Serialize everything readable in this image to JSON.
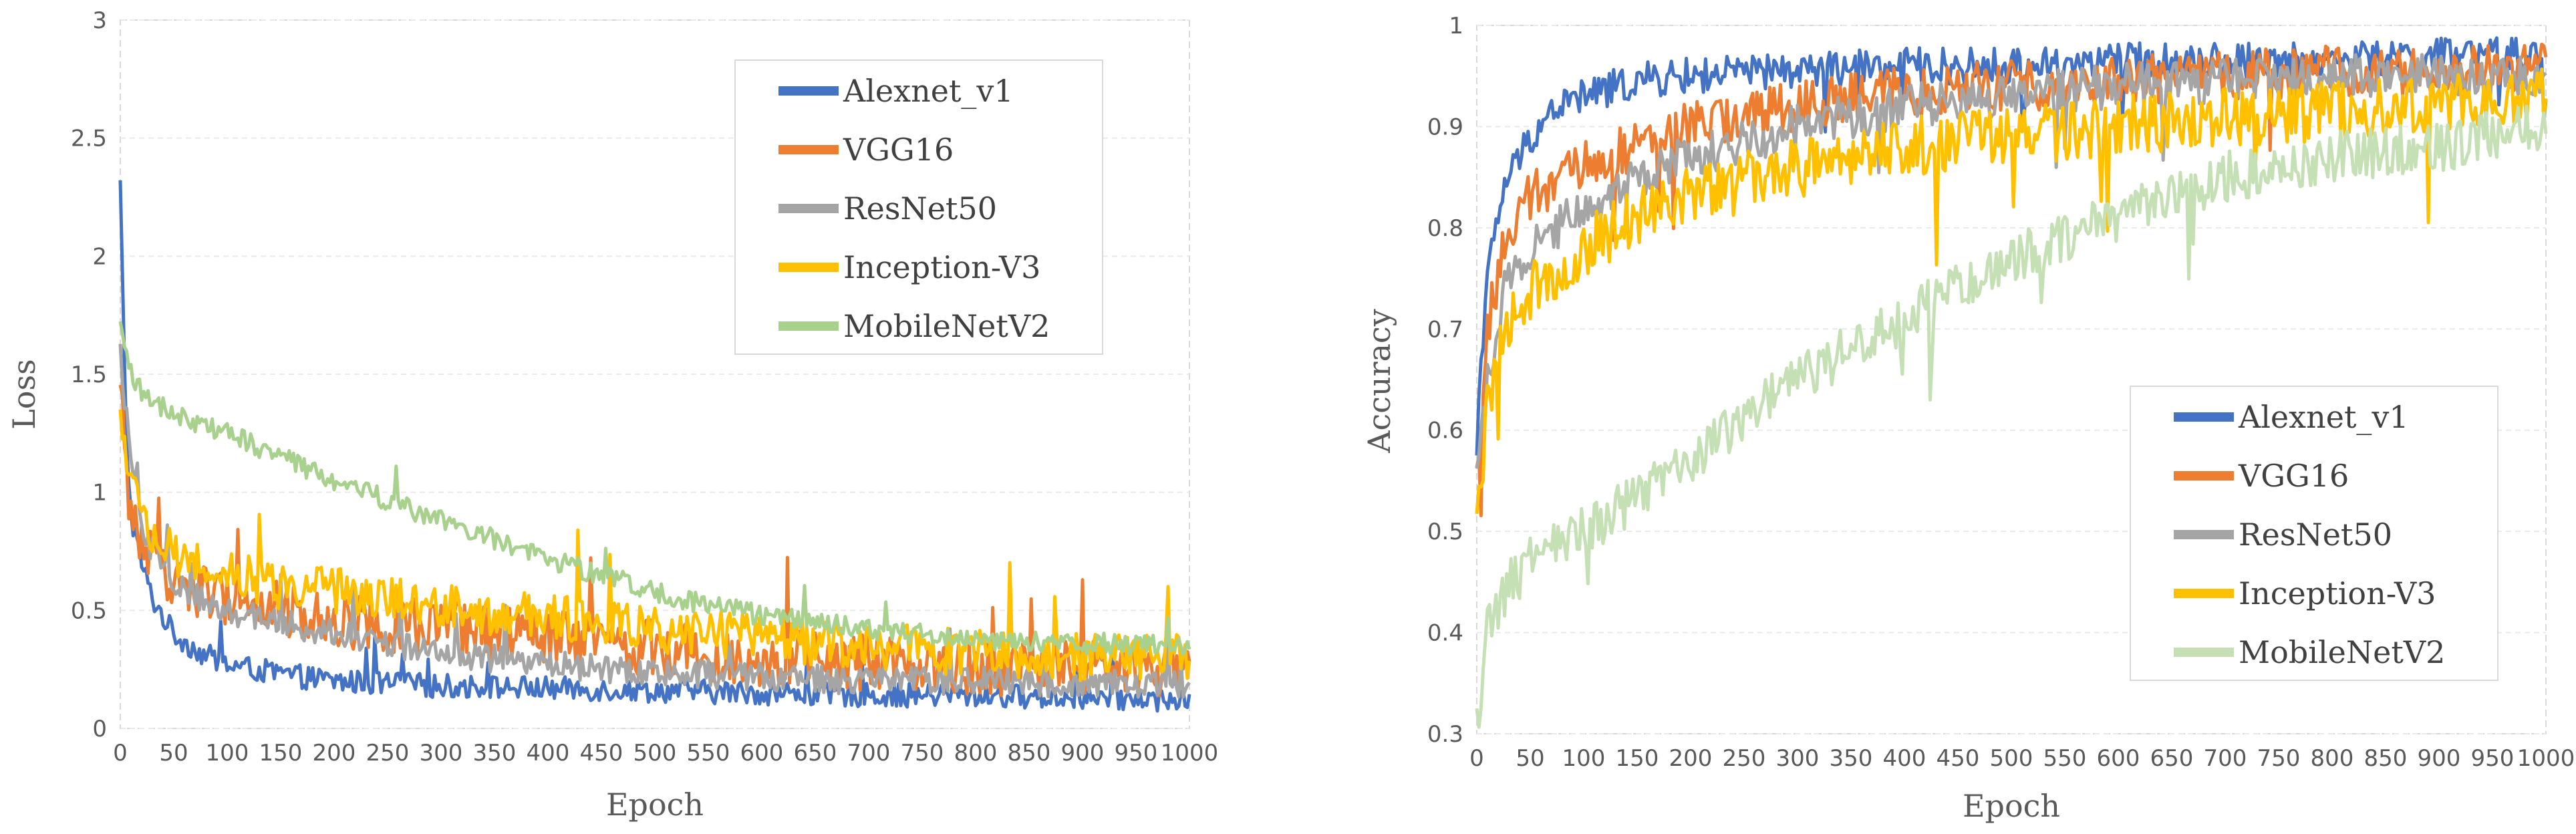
{
  "chart_data": [
    {
      "type": "line",
      "id": "loss",
      "title": "",
      "xlabel": "Epoch",
      "ylabel": "Loss",
      "xlim": [
        0,
        1000
      ],
      "ylim": [
        0,
        3
      ],
      "x_ticks": [
        "0",
        "50",
        "100",
        "150",
        "200",
        "250",
        "300",
        "350",
        "400",
        "450",
        "500",
        "550",
        "600",
        "650",
        "700",
        "750",
        "800",
        "850",
        "900",
        "950",
        "1000"
      ],
      "y_ticks": [
        "0",
        "0.5",
        "1",
        "1.5",
        "2",
        "2.5",
        "3"
      ],
      "grid": true,
      "legend_position": "top-right",
      "series": [
        {
          "name": "Alexnet_v1",
          "color": "#4472C4",
          "noise": 0.05,
          "x": [
            0,
            5,
            10,
            20,
            30,
            50,
            75,
            100,
            150,
            200,
            250,
            300,
            400,
            500,
            600,
            700,
            800,
            900,
            1000
          ],
          "values": [
            2.3,
            1.3,
            0.9,
            0.7,
            0.55,
            0.4,
            0.32,
            0.27,
            0.23,
            0.2,
            0.19,
            0.18,
            0.17,
            0.16,
            0.15,
            0.14,
            0.14,
            0.13,
            0.12
          ]
        },
        {
          "name": "VGG16",
          "color": "#ED7D31",
          "noise": 0.12,
          "x": [
            0,
            10,
            25,
            50,
            100,
            150,
            200,
            300,
            400,
            500,
            600,
            700,
            800,
            900,
            1000
          ],
          "values": [
            1.4,
            0.9,
            0.75,
            0.62,
            0.55,
            0.5,
            0.46,
            0.42,
            0.38,
            0.34,
            0.3,
            0.28,
            0.26,
            0.25,
            0.25
          ]
        },
        {
          "name": "ResNet50",
          "color": "#A5A5A5",
          "noise": 0.06,
          "x": [
            0,
            10,
            25,
            50,
            100,
            150,
            200,
            300,
            400,
            500,
            600,
            700,
            800,
            900,
            1000
          ],
          "values": [
            1.6,
            1.1,
            0.8,
            0.6,
            0.5,
            0.45,
            0.4,
            0.32,
            0.27,
            0.24,
            0.22,
            0.2,
            0.2,
            0.19,
            0.19
          ]
        },
        {
          "name": "Inception-V3",
          "color": "#FFC000",
          "noise": 0.1,
          "x": [
            0,
            10,
            25,
            50,
            100,
            150,
            200,
            300,
            400,
            500,
            600,
            700,
            800,
            900,
            1000
          ],
          "values": [
            1.3,
            1.0,
            0.85,
            0.75,
            0.65,
            0.6,
            0.58,
            0.52,
            0.47,
            0.42,
            0.38,
            0.35,
            0.32,
            0.3,
            0.3
          ]
        },
        {
          "name": "MobileNetV2",
          "color": "#A9D18E",
          "noise": 0.045,
          "x": [
            0,
            10,
            25,
            50,
            100,
            150,
            200,
            300,
            400,
            500,
            550,
            600,
            700,
            800,
            900,
            1000
          ],
          "values": [
            1.7,
            1.5,
            1.4,
            1.33,
            1.25,
            1.15,
            1.05,
            0.88,
            0.72,
            0.58,
            0.52,
            0.48,
            0.42,
            0.38,
            0.36,
            0.35
          ]
        }
      ]
    },
    {
      "type": "line",
      "id": "accuracy",
      "title": "",
      "xlabel": "Epoch",
      "ylabel": "Accuracy",
      "xlim": [
        0,
        1000
      ],
      "ylim": [
        0.3,
        1
      ],
      "x_ticks": [
        "0",
        "50",
        "100",
        "150",
        "200",
        "250",
        "300",
        "350",
        "400",
        "450",
        "500",
        "550",
        "600",
        "650",
        "700",
        "750",
        "800",
        "850",
        "900",
        "950",
        "1000"
      ],
      "y_ticks": [
        "0.3",
        "0.4",
        "0.5",
        "0.6",
        "0.7",
        "0.8",
        "0.9",
        "1"
      ],
      "grid": true,
      "legend_position": "center-right",
      "series": [
        {
          "name": "Alexnet_v1",
          "color": "#4472C4",
          "noise": 0.018,
          "x": [
            0,
            10,
            25,
            50,
            75,
            100,
            150,
            200,
            300,
            400,
            500,
            600,
            700,
            800,
            900,
            1000
          ],
          "values": [
            0.62,
            0.75,
            0.84,
            0.89,
            0.92,
            0.93,
            0.945,
            0.95,
            0.955,
            0.96,
            0.96,
            0.965,
            0.965,
            0.965,
            0.97,
            0.97
          ]
        },
        {
          "name": "VGG16",
          "color": "#ED7D31",
          "noise": 0.025,
          "x": [
            0,
            10,
            25,
            50,
            100,
            150,
            200,
            300,
            400,
            500,
            600,
            700,
            800,
            900,
            1000
          ],
          "values": [
            0.55,
            0.7,
            0.78,
            0.83,
            0.86,
            0.88,
            0.9,
            0.92,
            0.935,
            0.94,
            0.945,
            0.95,
            0.955,
            0.955,
            0.96
          ]
        },
        {
          "name": "ResNet50",
          "color": "#A5A5A5",
          "noise": 0.022,
          "x": [
            0,
            10,
            25,
            50,
            100,
            150,
            200,
            300,
            400,
            500,
            600,
            700,
            800,
            900,
            1000
          ],
          "values": [
            0.55,
            0.65,
            0.74,
            0.78,
            0.82,
            0.85,
            0.87,
            0.9,
            0.92,
            0.93,
            0.94,
            0.945,
            0.95,
            0.95,
            0.95
          ]
        },
        {
          "name": "Inception-V3",
          "color": "#FFC000",
          "noise": 0.03,
          "x": [
            0,
            10,
            25,
            50,
            100,
            150,
            200,
            300,
            400,
            500,
            600,
            700,
            800,
            900,
            1000
          ],
          "values": [
            0.5,
            0.62,
            0.7,
            0.74,
            0.78,
            0.81,
            0.83,
            0.86,
            0.88,
            0.89,
            0.9,
            0.91,
            0.915,
            0.92,
            0.93
          ]
        },
        {
          "name": "MobileNetV2",
          "color": "#C5E0B4",
          "noise": 0.025,
          "x": [
            0,
            10,
            25,
            50,
            100,
            200,
            300,
            400,
            500,
            600,
            700,
            800,
            900,
            1000
          ],
          "values": [
            0.31,
            0.4,
            0.44,
            0.47,
            0.5,
            0.57,
            0.65,
            0.71,
            0.77,
            0.81,
            0.85,
            0.87,
            0.88,
            0.9
          ]
        }
      ]
    }
  ]
}
